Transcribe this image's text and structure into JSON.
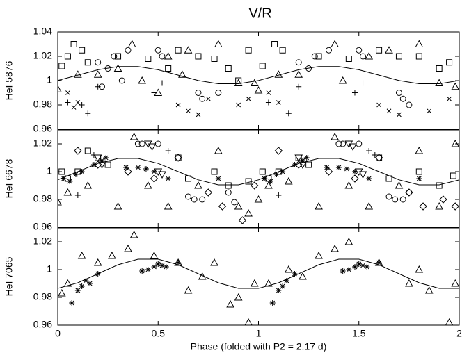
{
  "chart_data": [
    {
      "type": "scatter",
      "title": "V/R",
      "ylabel": "HeI 5876",
      "xlim": [
        0,
        2
      ],
      "xticks": [
        0,
        0.5,
        1,
        1.5,
        2
      ],
      "ylim": [
        0.96,
        1.04
      ],
      "yticks": [
        0.96,
        0.98,
        1,
        1.02,
        1.04
      ],
      "color": "#000000",
      "series": [
        {
          "marker": "line",
          "x": [
            0,
            0.1,
            0.2,
            0.3,
            0.4,
            0.5,
            0.6,
            0.7,
            0.8,
            0.9,
            1,
            1.1,
            1.2,
            1.3,
            1.4,
            1.5,
            1.6,
            1.7,
            1.8,
            1.9,
            2
          ],
          "values": [
            1.0001,
            1.0045,
            1.0089,
            1.0116,
            1.0116,
            1.0089,
            1.0045,
            1.0001,
            0.9974,
            0.9974,
            1.0001,
            1.0045,
            1.0089,
            1.0116,
            1.0116,
            1.0089,
            1.0045,
            1.0001,
            0.9974,
            0.9974,
            1.0001
          ]
        },
        {
          "marker": "square",
          "x": [
            0.02,
            0.05,
            0.08,
            0.12,
            0.15,
            0.3,
            0.45,
            0.55,
            0.6,
            0.7,
            0.78,
            0.85,
            0.9,
            0.95,
            1.02,
            1.08,
            1.12,
            1.3,
            1.45,
            1.6,
            1.7,
            1.8,
            1.9,
            1.95
          ],
          "values": [
            1.012,
            1.02,
            1.03,
            1.025,
            1.015,
            1.02,
            1.018,
            1.01,
            1.025,
            1.02,
            1.018,
            1.01,
            1.0,
            1.025,
            1.012,
            1.03,
            1.025,
            1.02,
            1.018,
            1.025,
            1.02,
            1.02,
            1.01,
            1.015
          ]
        },
        {
          "marker": "circle",
          "x": [
            0.2,
            0.25,
            0.28,
            0.22,
            0.32,
            0.5,
            0.52,
            0.7,
            0.72,
            0.8,
            0.35,
            1.2,
            1.25,
            1.28,
            1.35,
            1.5,
            1.52,
            1.7,
            1.72,
            1.75
          ],
          "values": [
            1.015,
            1.01,
            1.02,
            0.995,
            1.0,
            1.025,
            1.02,
            0.99,
            0.985,
            0.99,
            1.025,
            1.015,
            1.01,
            1.02,
            1.025,
            1.025,
            1.02,
            0.99,
            0.985,
            0.98
          ]
        },
        {
          "marker": "triangle",
          "x": [
            0,
            0.1,
            0.2,
            0.3,
            0.37,
            0.42,
            0.5,
            0.55,
            0.62,
            0.65,
            0.8,
            0.9,
            0.98,
            1,
            1.1,
            1.2,
            1.38,
            1.42,
            1.55,
            1.65,
            1.8,
            1.9,
            1.98
          ],
          "values": [
            0.993,
            1.005,
            1.005,
            1.01,
            1.03,
            1.0,
            0.99,
            1.02,
            1.005,
            1.025,
            1.03,
            0.998,
            0.998,
            0.992,
            1.005,
            1.005,
            1.03,
            1.0,
            1.02,
            1.025,
            1.03,
            0.998,
            0.995
          ]
        },
        {
          "marker": "cross",
          "x": [
            0.05,
            0.1,
            0.08,
            0.6,
            0.65,
            0.7,
            0.75,
            0.9,
            0.95,
            1.05,
            1.1,
            1.6,
            1.65,
            1.7,
            1.85,
            1.95
          ],
          "values": [
            0.99,
            0.982,
            0.978,
            0.98,
            0.975,
            0.972,
            0.985,
            0.98,
            0.985,
            0.99,
            0.982,
            0.98,
            0.975,
            0.972,
            0.975,
            0.985
          ]
        },
        {
          "marker": "plus",
          "x": [
            0.05,
            0.12,
            0.15,
            0.2,
            0.48,
            0.52,
            1.05,
            1.15,
            1.2,
            1.48,
            1.52
          ],
          "values": [
            0.982,
            0.98,
            0.973,
            0.995,
            0.99,
            0.998,
            0.982,
            0.973,
            0.995,
            0.99,
            0.998
          ]
        }
      ]
    },
    {
      "type": "scatter",
      "ylabel": "HeI 6678",
      "xlim": [
        0,
        2
      ],
      "xticks": [
        0,
        0.5,
        1,
        1.5,
        2
      ],
      "ylim": [
        0.96,
        1.03
      ],
      "yticks": [
        0.96,
        0.98,
        1,
        1.02
      ],
      "color": "#000000",
      "series": [
        {
          "marker": "line",
          "x": [
            0,
            0.1,
            0.2,
            0.3,
            0.4,
            0.5,
            0.6,
            0.7,
            0.8,
            0.9,
            1,
            1.1,
            1.2,
            1.3,
            1.4,
            1.5,
            1.6,
            1.7,
            1.8,
            1.9,
            2
          ],
          "values": [
            0.9941,
            1.0,
            1.0059,
            1.0095,
            1.0095,
            1.0059,
            1.0,
            0.9941,
            0.9905,
            0.9905,
            0.9941,
            1.0,
            1.0059,
            1.0095,
            1.0095,
            1.0059,
            1.0,
            0.9941,
            0.9905,
            0.9905,
            0.9941
          ]
        },
        {
          "marker": "square",
          "x": [
            0.02,
            0.05,
            0.1,
            0.15,
            0.2,
            0.25,
            0.6,
            0.65,
            0.78,
            0.85,
            0.95,
            1.02,
            1.05,
            1.1,
            1.2,
            1.25,
            1.6,
            1.65,
            1.8,
            1.9,
            1.97
          ],
          "values": [
            1.0,
            0.995,
            1.0,
            1.015,
            1.01,
            1.005,
            1.01,
            0.995,
            1.0,
            0.99,
            0.993,
            1.0,
            0.995,
            1.0,
            1.01,
            1.005,
            1.01,
            0.995,
            1.0,
            0.99,
            0.997
          ]
        },
        {
          "marker": "circle",
          "x": [
            0.4,
            0.42,
            0.5,
            0.65,
            0.68,
            0.72,
            0.85,
            0.88,
            1.4,
            1.42,
            1.5,
            1.65,
            1.68,
            1.72,
            1.75
          ],
          "values": [
            1.02,
            1.02,
            1.02,
            0.982,
            0.98,
            0.98,
            0.985,
            0.978,
            1.02,
            1.02,
            1.02,
            0.982,
            0.98,
            0.98,
            0.985
          ]
        },
        {
          "marker": "triangle",
          "x": [
            0,
            0.05,
            0.15,
            0.3,
            0.38,
            0.45,
            0.55,
            0.7,
            0.8,
            0.9,
            0.95,
            1.0,
            1.05,
            1.15,
            1.3,
            1.38,
            1.45,
            1.55,
            1.7,
            1.8,
            1.9,
            1.98
          ],
          "values": [
            0.978,
            0.985,
            0.99,
            0.975,
            1.025,
            0.99,
            0.975,
            0.99,
            1.015,
            0.975,
            0.97,
            0.98,
            0.99,
            0.993,
            0.975,
            1.025,
            0.99,
            0.975,
            0.99,
            1.015,
            0.975,
            1.02
          ]
        },
        {
          "marker": "diamond",
          "x": [
            0.1,
            0.2,
            0.35,
            0.48,
            0.6,
            0.75,
            0.82,
            0.92,
            0.98,
            1.1,
            1.2,
            1.35,
            1.48,
            1.6,
            1.75,
            1.82,
            1.92,
            1.98
          ],
          "values": [
            1.015,
            1.005,
            1.0,
            0.995,
            1.01,
            0.985,
            0.975,
            0.965,
            0.99,
            1.015,
            1.005,
            1.0,
            0.995,
            1.01,
            0.985,
            0.975,
            0.98,
            0.975
          ]
        },
        {
          "marker": "triangle-down",
          "x": [
            0.2,
            0.22,
            0.45,
            0.47,
            0.5,
            0.52,
            1.2,
            1.22,
            1.45,
            1.47,
            1.5,
            1.52
          ],
          "values": [
            1.01,
            1.005,
            1.02,
            1.018,
            1.0,
            0.998,
            1.01,
            1.005,
            1.02,
            1.018,
            1.0,
            0.998
          ]
        },
        {
          "marker": "plus",
          "x": [
            0.06,
            0.1,
            0.55,
            0.18,
            1.06,
            1.1,
            1.55,
            1.58
          ],
          "values": [
            0.993,
            0.983,
            1.015,
            1.012,
            0.993,
            0.983,
            1.015,
            1.012
          ]
        },
        {
          "marker": "asterisk",
          "x": [
            0.03,
            0.06,
            0.09,
            0.12,
            0.18,
            0.22,
            0.24,
            0.34,
            0.4,
            0.44,
            0.48,
            0.55,
            0.8,
            1.03,
            1.06,
            1.09,
            1.12,
            1.18,
            1.22,
            1.24,
            1.34,
            1.4,
            1.44,
            1.48,
            1.55,
            1.8
          ],
          "values": [
            0.995,
            0.993,
            0.998,
            1.0,
            1.005,
            1.008,
            1.01,
            1.003,
            1.003,
            1.002,
            1.0,
            0.995,
            0.995,
            0.995,
            0.993,
            0.998,
            1.0,
            1.005,
            1.008,
            1.01,
            1.003,
            1.003,
            1.002,
            1.0,
            0.995,
            0.995
          ]
        }
      ]
    },
    {
      "type": "scatter",
      "ylabel": "HeI 7065",
      "xlabel": "Phase (folded with P2 = 2.17 d)",
      "xlim": [
        0,
        2
      ],
      "xticks": [
        0,
        0.5,
        1,
        1.5,
        2
      ],
      "ylim": [
        0.96,
        1.03
      ],
      "yticks": [
        0.96,
        0.98,
        1,
        1.02
      ],
      "color": "#000000",
      "series": [
        {
          "marker": "line",
          "x": [
            0,
            0.1,
            0.2,
            0.3,
            0.4,
            0.5,
            0.6,
            0.7,
            0.8,
            0.9,
            1,
            1.1,
            1.2,
            1.3,
            1.4,
            1.5,
            1.6,
            1.7,
            1.8,
            1.9,
            2
          ],
          "values": [
            0.9865,
            0.9905,
            0.997,
            1.0035,
            1.0075,
            1.0075,
            1.0035,
            0.997,
            0.9905,
            0.9865,
            0.9865,
            0.9905,
            0.997,
            1.0035,
            1.0075,
            1.0075,
            1.0035,
            0.997,
            0.9905,
            0.9865,
            0.9865
          ]
        },
        {
          "marker": "triangle",
          "x": [
            0.02,
            0.05,
            0.12,
            0.2,
            0.27,
            0.35,
            0.38,
            0.48,
            0.6,
            0.65,
            0.72,
            0.78,
            0.86,
            0.9,
            0.95,
            0.98,
            1.05,
            1.15,
            1.22,
            1.3,
            1.38,
            1.45,
            1.6,
            1.75,
            1.8,
            1.85,
            1.95,
            1.98
          ],
          "values": [
            0.983,
            0.99,
            1.01,
            1.005,
            1.01,
            1.015,
            1.025,
            1.01,
            1.005,
            0.985,
            0.995,
            1.005,
            0.975,
            0.98,
            0.962,
            0.99,
            0.99,
            1.0,
            0.995,
            1.01,
            1.015,
            1.02,
            1.005,
            0.99,
            1.0,
            0.985,
            0.962,
            0.99
          ]
        },
        {
          "marker": "asterisk",
          "x": [
            0.07,
            0.1,
            0.12,
            0.14,
            0.16,
            0.2,
            0.42,
            0.45,
            0.48,
            0.5,
            0.52,
            0.54,
            0.6,
            1.07,
            1.1,
            1.12,
            1.14,
            1.18,
            1.42,
            1.45,
            1.48,
            1.5,
            1.52,
            1.54,
            1.6
          ],
          "values": [
            0.976,
            0.985,
            0.988,
            0.992,
            0.99,
            0.997,
            0.999,
            1.0,
            1.002,
            1.004,
            1.003,
            1.002,
            1.005,
            0.976,
            0.985,
            0.988,
            0.992,
            0.997,
            0.999,
            1.0,
            1.002,
            1.004,
            1.003,
            1.002,
            1.005
          ]
        }
      ]
    }
  ]
}
